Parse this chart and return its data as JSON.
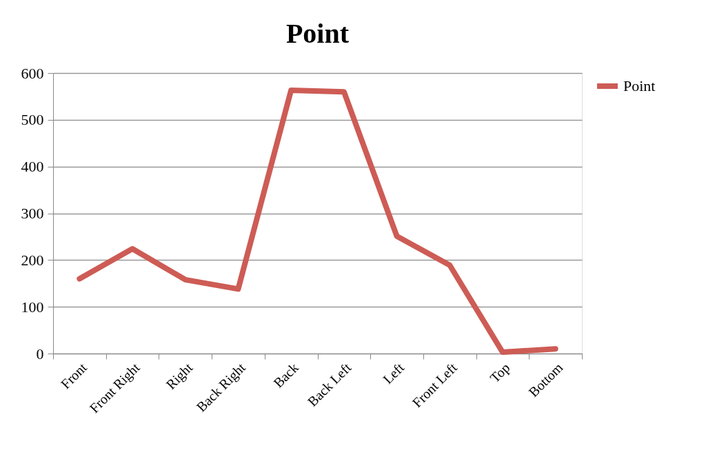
{
  "chart_data": {
    "type": "line",
    "title": "Point",
    "categories": [
      "Front",
      "Front Right",
      "Right",
      "Back Right",
      "Back",
      "Back Left",
      "Left",
      "Front Left",
      "Top",
      "Bottom"
    ],
    "series": [
      {
        "name": "Point",
        "color": "#cd5c55",
        "values": [
          160,
          224,
          158,
          138,
          563,
          560,
          251,
          189,
          3,
          10
        ]
      }
    ],
    "ylim": [
      0,
      600
    ],
    "yticks": [
      0,
      100,
      200,
      300,
      400,
      500,
      600
    ],
    "grid": "y",
    "legend": "right",
    "line_style": "solid"
  }
}
